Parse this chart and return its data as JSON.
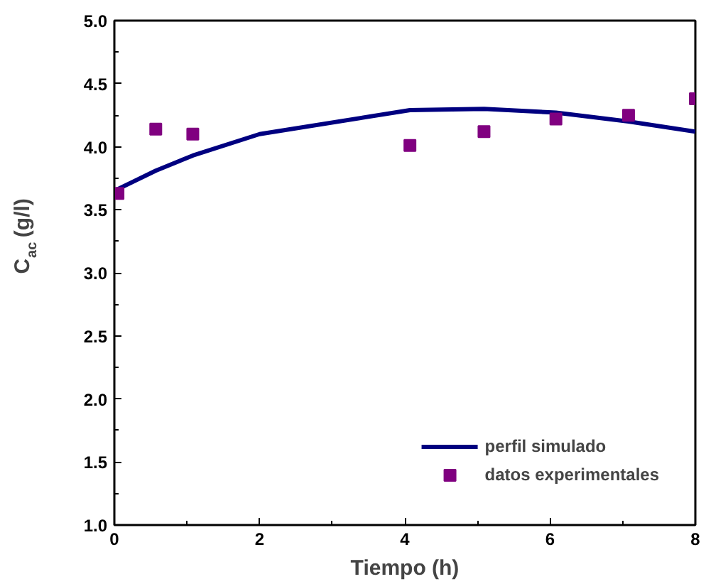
{
  "chart_data": {
    "type": "line",
    "xlabel": "Tiempo (h)",
    "ylabel": "C$_{ac}$ (g/l)",
    "xlim": [
      0,
      8
    ],
    "ylim": [
      1.0,
      5.0
    ],
    "xticks": [
      0,
      2,
      4,
      6,
      8
    ],
    "yticks": [
      {
        "value": 1.0,
        "label": "1.0"
      },
      {
        "value": 1.5,
        "label": "1.5"
      },
      {
        "value": 2.0,
        "label": "2.0"
      },
      {
        "value": 2.5,
        "label": "2.5"
      },
      {
        "value": 3.0,
        "label": "3.0"
      },
      {
        "value": 3.5,
        "label": "3.5"
      },
      {
        "value": 4.0,
        "label": "4.0"
      },
      {
        "value": 4.5,
        "label": "4.5"
      },
      {
        "value": 5.0,
        "label": "5.0"
      }
    ],
    "grid": false,
    "legend": "bottom right",
    "series": [
      {
        "name": "perfil simulado",
        "color": "#000080",
        "line_style": "solid",
        "x": [
          0,
          0.57,
          1.08,
          2,
          4.07,
          5.09,
          6.08,
          7.08,
          8
        ],
        "values": [
          3.65,
          3.81,
          3.93,
          4.1,
          4.29,
          4.3,
          4.27,
          4.2,
          4.12
        ]
      },
      {
        "name": "datos experimentales",
        "type": "scatter",
        "marker": "square",
        "color": "#800080",
        "x": [
          0.05,
          0.57,
          1.08,
          4.07,
          5.09,
          6.08,
          7.08,
          8
        ],
        "values": [
          3.63,
          4.14,
          4.1,
          4.01,
          4.12,
          4.22,
          4.25,
          4.38
        ]
      }
    ]
  }
}
